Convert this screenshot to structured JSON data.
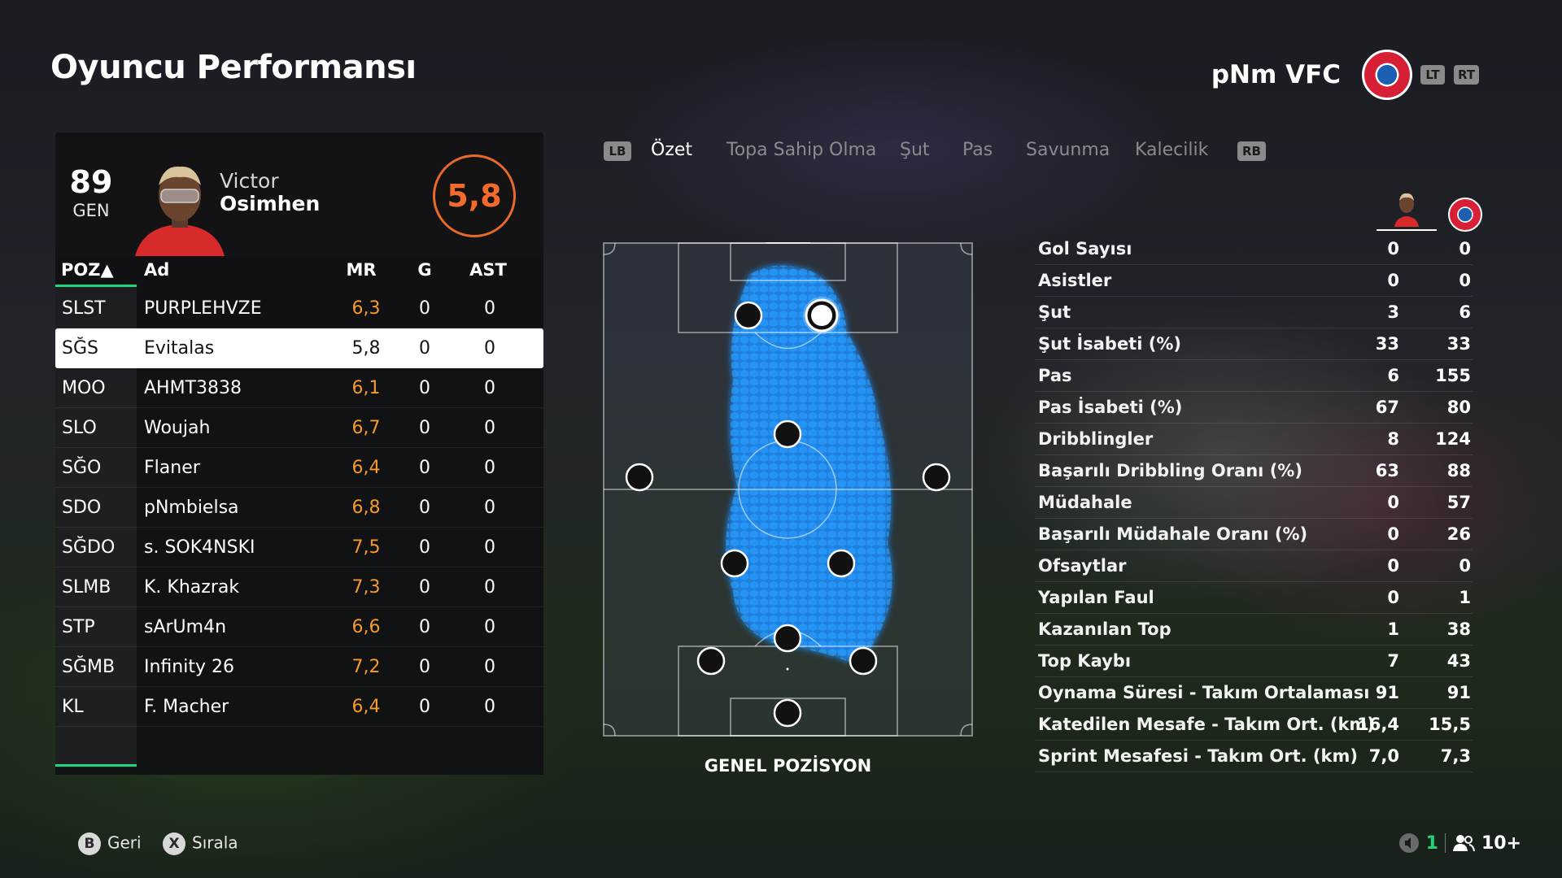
{
  "header": {
    "title": "Oyuncu Performansı",
    "team_name": "pNm VFC",
    "lt_hint": "LT",
    "rt_hint": "RT"
  },
  "player": {
    "ovr": "89",
    "ovr_label": "GEN",
    "first_name": "Victor",
    "last_name": "Osimhen",
    "rating": "5,8"
  },
  "table": {
    "headers": {
      "pos": "POZ▲",
      "name": "Ad",
      "mr": "MR",
      "g": "G",
      "ast": "AST"
    },
    "rows": [
      {
        "pos": "SLST",
        "name": "PURPLEHVZE",
        "mr": "6,3",
        "g": "0",
        "ast": "0"
      },
      {
        "pos": "SĞS",
        "name": "Evitalas",
        "mr": "5,8",
        "g": "0",
        "ast": "0"
      },
      {
        "pos": "MOO",
        "name": "AHMT3838",
        "mr": "6,1",
        "g": "0",
        "ast": "0"
      },
      {
        "pos": "SLO",
        "name": "Woujah",
        "mr": "6,7",
        "g": "0",
        "ast": "0"
      },
      {
        "pos": "SĞO",
        "name": "Flaner",
        "mr": "6,4",
        "g": "0",
        "ast": "0"
      },
      {
        "pos": "SDO",
        "name": "pNmbielsa",
        "mr": "6,8",
        "g": "0",
        "ast": "0"
      },
      {
        "pos": "SĞDO",
        "name": "s. SOK4NSKI",
        "mr": "7,5",
        "g": "0",
        "ast": "0"
      },
      {
        "pos": "SLMB",
        "name": "K. Khazrak",
        "mr": "7,3",
        "g": "0",
        "ast": "0"
      },
      {
        "pos": "STP",
        "name": "sArUm4n",
        "mr": "6,6",
        "g": "0",
        "ast": "0"
      },
      {
        "pos": "SĞMB",
        "name": "Infinity 26",
        "mr": "7,2",
        "g": "0",
        "ast": "0"
      },
      {
        "pos": "KL",
        "name": "F. Macher",
        "mr": "6,4",
        "g": "0",
        "ast": "0"
      }
    ],
    "selected_index": 1
  },
  "tabs": {
    "lb": "LB",
    "rb": "RB",
    "items": [
      "Özet",
      "Topa Sahip Olma",
      "Şut",
      "Pas",
      "Savunma",
      "Kalecilik"
    ],
    "active": 0
  },
  "pitch": {
    "label": "GENEL POZİSYON"
  },
  "stats": {
    "rows": [
      {
        "label": "Gol Sayısı",
        "a": "0",
        "b": "0"
      },
      {
        "label": "Asistler",
        "a": "0",
        "b": "0"
      },
      {
        "label": "Şut",
        "a": "3",
        "b": "6"
      },
      {
        "label": "Şut İsabeti (%)",
        "a": "33",
        "b": "33"
      },
      {
        "label": "Pas",
        "a": "6",
        "b": "155"
      },
      {
        "label": "Pas İsabeti (%)",
        "a": "67",
        "b": "80"
      },
      {
        "label": "Dribblingler",
        "a": "8",
        "b": "124"
      },
      {
        "label": "Başarılı Dribbling Oranı (%)",
        "a": "63",
        "b": "88"
      },
      {
        "label": "Müdahale",
        "a": "0",
        "b": "57"
      },
      {
        "label": "Başarılı Müdahale Oranı (%)",
        "a": "0",
        "b": "26"
      },
      {
        "label": "Ofsaytlar",
        "a": "0",
        "b": "0"
      },
      {
        "label": "Yapılan Faul",
        "a": "0",
        "b": "1"
      },
      {
        "label": "Kazanılan Top",
        "a": "1",
        "b": "38"
      },
      {
        "label": "Top Kaybı",
        "a": "7",
        "b": "43"
      },
      {
        "label": "Oynama Süresi - Takım Ortalaması",
        "a": "91",
        "b": "91"
      },
      {
        "label": "Katedilen Mesafe - Takım Ort. (km)",
        "a": "16,4",
        "b": "15,5"
      },
      {
        "label": "Sprint Mesafesi - Takım Ort. (km)",
        "a": "7,0",
        "b": "7,3"
      }
    ]
  },
  "footer": {
    "back_key": "B",
    "back_label": "Geri",
    "sort_key": "X",
    "sort_label": "Sırala",
    "voice_count": "1",
    "party_count": "10+"
  },
  "colors": {
    "accent_green": "#1fd67a",
    "rating_orange": "#f46a2c",
    "heatmap_blue": "#1a8fff",
    "club_red": "#d71f35"
  }
}
